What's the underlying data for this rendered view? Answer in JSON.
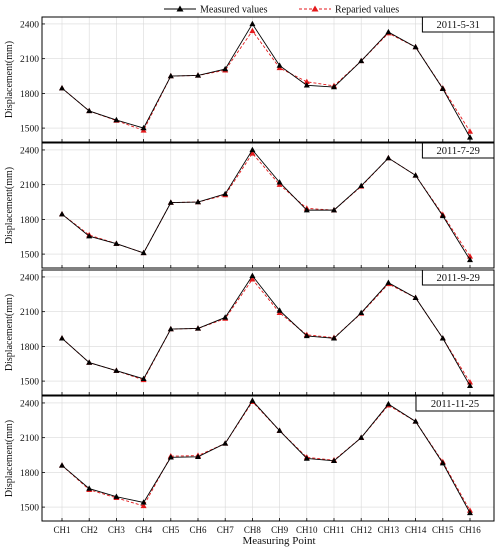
{
  "chart_data": {
    "type": "line",
    "legend": {
      "position": "top-center",
      "entries": [
        "Measured values",
        "Reparied values"
      ]
    },
    "categories": [
      "CH1",
      "CH2",
      "CH3",
      "CH4",
      "CH5",
      "CH6",
      "CH7",
      "CH8",
      "CH9",
      "CH10",
      "CH11",
      "CH12",
      "CH13",
      "CH14",
      "CH15",
      "CH16"
    ],
    "xlabel": "Measuring Point",
    "ylabel": "Displacement(mm)",
    "ylim": [
      1380,
      2460
    ],
    "yticks": [
      1500,
      1800,
      2100,
      2400
    ],
    "grid": true,
    "colors": {
      "measured": "#000000",
      "repaired": "#e41a1c",
      "grid": "#d9d9d9"
    },
    "panels": [
      {
        "title": "2011-5-31",
        "series": [
          {
            "name": "Measured values",
            "values": [
              1845,
              1648,
              1570,
              1500,
              1950,
              1955,
              2010,
              2400,
              2040,
              1870,
              1855,
              2080,
              2330,
              2200,
              1840,
              1420
            ]
          },
          {
            "name": "Reparied values",
            "values": [
              1845,
              1648,
              1565,
              1480,
              1950,
              1955,
              2000,
              2340,
              2020,
              1900,
              1865,
              2080,
              2320,
              2200,
              1845,
              1470
            ]
          }
        ]
      },
      {
        "title": "2011-7-29",
        "series": [
          {
            "name": "Measured values",
            "values": [
              1845,
              1655,
              1590,
              1510,
              1945,
              1950,
              2020,
              2400,
              2120,
              1880,
              1880,
              2090,
              2330,
              2180,
              1830,
              1450
            ]
          },
          {
            "name": "Reparied values",
            "values": [
              1845,
              1665,
              1590,
              1510,
              1945,
              1950,
              2010,
              2370,
              2100,
              1895,
              1880,
              2085,
              2330,
              2180,
              1840,
              1480
            ]
          }
        ]
      },
      {
        "title": "2011-9-29",
        "series": [
          {
            "name": "Measured values",
            "values": [
              1870,
              1660,
              1590,
              1520,
              1950,
              1955,
              2050,
              2410,
              2110,
              1890,
              1870,
              2090,
              2350,
              2220,
              1870,
              1460
            ]
          },
          {
            "name": "Reparied values",
            "values": [
              1870,
              1660,
              1590,
              1510,
              1950,
              1955,
              2040,
              2380,
              2090,
              1900,
              1875,
              2085,
              2340,
              2220,
              1870,
              1490
            ]
          }
        ]
      },
      {
        "title": "2011-11-25",
        "series": [
          {
            "name": "Measured values",
            "values": [
              1860,
              1660,
              1590,
              1540,
              1930,
              1935,
              2050,
              2420,
              2160,
              1920,
              1900,
              2100,
              2390,
              2240,
              1880,
              1450
            ]
          },
          {
            "name": "Reparied values",
            "values": [
              1860,
              1650,
              1580,
              1510,
              1940,
              1945,
              2050,
              2410,
              2160,
              1930,
              1905,
              2100,
              2380,
              2240,
              1890,
              1470
            ]
          }
        ]
      }
    ]
  }
}
